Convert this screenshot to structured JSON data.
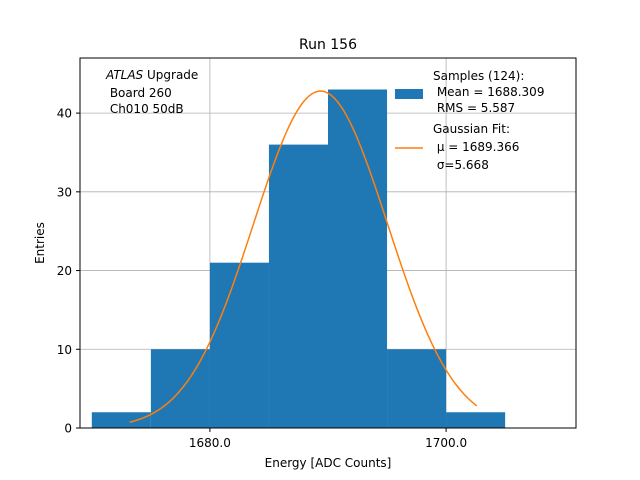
{
  "chart_data": {
    "type": "bar",
    "title": "Run 156",
    "xlabel": "Energy [ADC Counts]",
    "ylabel": "Entries",
    "xlim": [
      1669.0,
      1711.0
    ],
    "ylim": [
      0,
      47
    ],
    "grid": true,
    "xticks": [
      {
        "value": 1680,
        "label": "1680.0"
      },
      {
        "value": 1700,
        "label": "1700.0"
      }
    ],
    "yticks": [
      0,
      10,
      20,
      30,
      40
    ],
    "histogram": {
      "name": "Samples (124):",
      "color": "#1f77b4",
      "bins": [
        {
          "x0": 1670,
          "x1": 1675,
          "count": 2
        },
        {
          "x0": 1675,
          "x1": 1680,
          "count": 10
        },
        {
          "x0": 1680,
          "x1": 1685,
          "count": 21
        },
        {
          "x0": 1685,
          "x1": 1690,
          "count": 36
        },
        {
          "x0": 1690,
          "x1": 1695,
          "count": 43
        },
        {
          "x0": 1695,
          "x1": 1700,
          "count": 10
        },
        {
          "x0": 1700,
          "x1": 1705,
          "count": 2
        }
      ]
    },
    "fit": {
      "name": "Gaussian Fit:",
      "color": "#ff7f0e",
      "amplitude": 42.8,
      "mu": 1689.366,
      "sigma": 5.668,
      "x_range": [
        1673.2,
        1702.6
      ]
    },
    "legend": {
      "location": "top-right",
      "entries": [
        {
          "series": "histogram",
          "lines": [
            "Samples (124):",
            " Mean = 1688.309",
            " RMS = 5.587"
          ]
        },
        {
          "series": "fit",
          "lines": [
            "Gaussian Fit:",
            " μ = 1689.366",
            " σ=5.668"
          ]
        }
      ]
    },
    "annotation": {
      "location": "top-left",
      "italic_prefix": "ATLAS",
      "line1_rest": " Upgrade",
      "line2": " Board 260",
      "line3": " Ch010 50dB"
    }
  }
}
